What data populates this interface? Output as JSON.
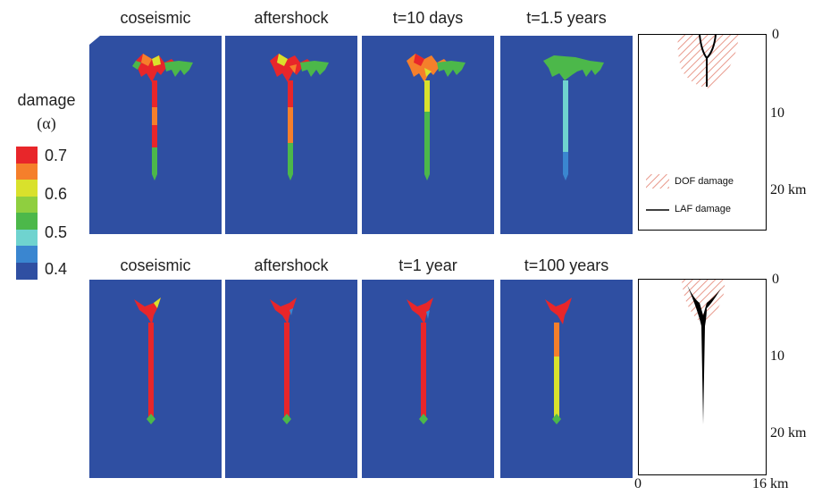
{
  "colorbar": {
    "title_line1": "damage",
    "title_line2": "(α)",
    "ticks": [
      "0.7",
      "0.6",
      "0.5",
      "0.4"
    ],
    "colors": [
      "#e8262a",
      "#f57f2b",
      "#d9e12c",
      "#8fcf3f",
      "#4cb84a",
      "#6fd3cf",
      "#3a86d0",
      "#2f4fa2"
    ]
  },
  "top_row": {
    "titles": [
      "coseismic",
      "aftershock",
      "t=10 days",
      "t=1.5 years"
    ]
  },
  "bottom_row": {
    "titles": [
      "coseismic",
      "aftershock",
      "t=1 year",
      "t=100 years"
    ]
  },
  "profile_top": {
    "depth_ticks": [
      "0",
      "10",
      "20 km"
    ],
    "legend": {
      "dof": "DOF damage",
      "laf": "LAF damage"
    }
  },
  "profile_bottom": {
    "depth_ticks": [
      "0",
      "10",
      "20 km"
    ],
    "x_ticks": [
      "0",
      "16 km"
    ]
  },
  "colors": {
    "background_panel": "#2f4fa2",
    "dof_hatch": "#e8988a",
    "laf_line": "#000000"
  }
}
